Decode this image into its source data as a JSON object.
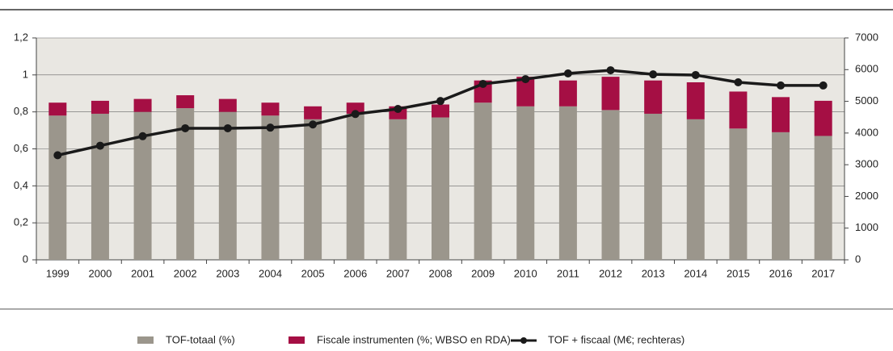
{
  "chart_data": {
    "type": "bar",
    "stacked": true,
    "categories": [
      "1999",
      "2000",
      "2001",
      "2002",
      "2003",
      "2004",
      "2005",
      "2006",
      "2007",
      "2008",
      "2009",
      "2010",
      "2011",
      "2012",
      "2013",
      "2014",
      "2015",
      "2016",
      "2017"
    ],
    "series": [
      {
        "name": "TOF-totaal (%)",
        "color": "#9b968c",
        "axis": "y",
        "values": [
          0.78,
          0.79,
          0.8,
          0.82,
          0.8,
          0.78,
          0.76,
          0.79,
          0.76,
          0.77,
          0.85,
          0.83,
          0.83,
          0.81,
          0.79,
          0.76,
          0.71,
          0.69,
          0.67
        ]
      },
      {
        "name": "Fiscale instrumenten (%; WBSO en RDA)",
        "color": "#a50f44",
        "axis": "y",
        "values": [
          0.07,
          0.07,
          0.07,
          0.07,
          0.07,
          0.07,
          0.07,
          0.06,
          0.07,
          0.07,
          0.12,
          0.16,
          0.14,
          0.18,
          0.18,
          0.2,
          0.2,
          0.19,
          0.19
        ]
      },
      {
        "name": "TOF + fiscaal (M€; rechteras)",
        "color": "#1a1a1a",
        "axis": "y2",
        "type": "line",
        "values": [
          3300,
          3600,
          3900,
          4150,
          4150,
          4170,
          4270,
          4600,
          4760,
          5010,
          5550,
          5700,
          5880,
          5980,
          5850,
          5830,
          5600,
          5500,
          5500
        ]
      }
    ],
    "ylim": [
      0,
      1.2
    ],
    "yticks": [
      0,
      {
        "value": 0.2,
        "label": "0,2"
      },
      {
        "value": 0.4,
        "label": "0,4"
      },
      {
        "value": 0.6,
        "label": "0,6"
      },
      {
        "value": 0.8,
        "label": "0,8"
      },
      1,
      {
        "value": 1.2,
        "label": "1,2"
      }
    ],
    "y2lim": [
      0,
      7000
    ],
    "y2ticks": [
      0,
      1000,
      2000,
      3000,
      4000,
      5000,
      6000,
      7000
    ],
    "grid": true
  }
}
